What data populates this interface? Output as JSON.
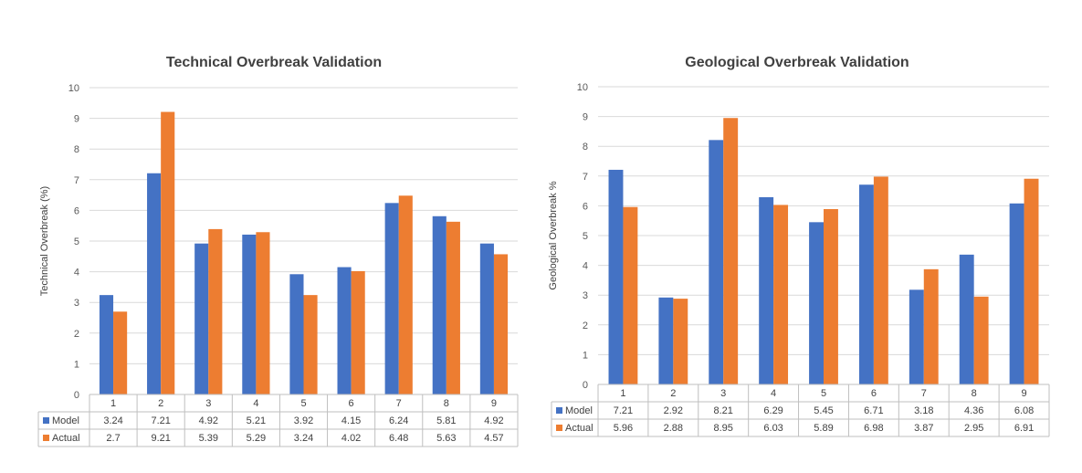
{
  "chart_data": [
    {
      "type": "bar",
      "title": "Technical Overbreak Validation",
      "xlabel": "",
      "ylabel": "Technical Overbreak (%)",
      "ylim": [
        0,
        10
      ],
      "yticks": [
        "0",
        "1",
        "2",
        "3",
        "4",
        "5",
        "6",
        "7",
        "8",
        "9",
        "10"
      ],
      "grid": true,
      "legend": "table-bottom",
      "categories": [
        "1",
        "2",
        "3",
        "4",
        "5",
        "6",
        "7",
        "8",
        "9"
      ],
      "series": [
        {
          "name": "Model",
          "color": "#4472C4",
          "values": [
            3.24,
            7.21,
            4.92,
            5.21,
            3.92,
            4.15,
            6.24,
            5.81,
            4.92
          ],
          "labels": [
            "3.24",
            "7.21",
            "4.92",
            "5.21",
            "3.92",
            "4.15",
            "6.24",
            "5.81",
            "4.92"
          ]
        },
        {
          "name": "Actual",
          "color": "#ED7D31",
          "values": [
            2.7,
            9.21,
            5.39,
            5.29,
            3.24,
            4.02,
            6.48,
            5.63,
            4.57
          ],
          "labels": [
            "2.7",
            "9.21",
            "5.39",
            "5.29",
            "3.24",
            "4.02",
            "6.48",
            "5.63",
            "4.57"
          ]
        }
      ]
    },
    {
      "type": "bar",
      "title": "Geological Overbreak Validation",
      "xlabel": "",
      "ylabel": "Geological Overbreak %",
      "ylim": [
        0,
        10
      ],
      "yticks": [
        "0",
        "1",
        "2",
        "3",
        "4",
        "5",
        "6",
        "7",
        "8",
        "9",
        "10"
      ],
      "grid": true,
      "legend": "table-bottom",
      "categories": [
        "1",
        "2",
        "3",
        "4",
        "5",
        "6",
        "7",
        "8",
        "9"
      ],
      "series": [
        {
          "name": "Model",
          "color": "#4472C4",
          "values": [
            7.21,
            2.92,
            8.21,
            6.29,
            5.45,
            6.71,
            3.18,
            4.36,
            6.08
          ],
          "labels": [
            "7.21",
            "2.92",
            "8.21",
            "6.29",
            "5.45",
            "6.71",
            "3.18",
            "4.36",
            "6.08"
          ]
        },
        {
          "name": "Actual",
          "color": "#ED7D31",
          "values": [
            5.96,
            2.88,
            8.95,
            6.03,
            5.89,
            6.98,
            3.87,
            2.95,
            6.91
          ],
          "labels": [
            "5.96",
            "2.88",
            "8.95",
            "6.03",
            "5.89",
            "6.98",
            "3.87",
            "2.95",
            "6.91"
          ]
        }
      ]
    }
  ]
}
